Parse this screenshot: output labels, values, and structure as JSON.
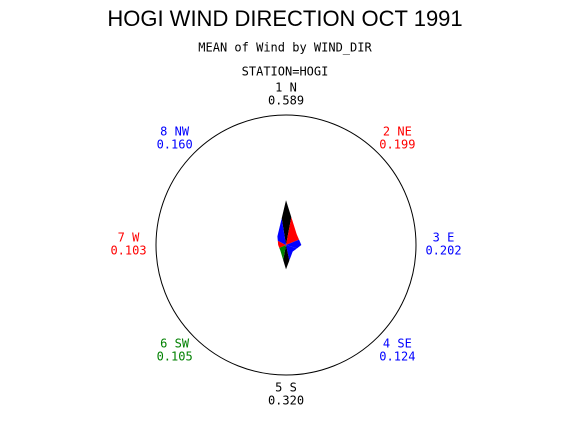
{
  "chart_data": {
    "type": "star",
    "title": "HOGI WIND DIRECTION OCT 1991",
    "subtitle": "MEAN of Wind by WIND_DIR",
    "station": "STATION=HOGI",
    "categories": [
      "1 N",
      "2 NE",
      "3 E",
      "4 SE",
      "5 S",
      "6 SW",
      "7 W",
      "8 NW"
    ],
    "values": [
      0.589,
      0.199,
      0.202,
      0.124,
      0.32,
      0.105,
      0.103,
      0.16
    ],
    "value_labels": [
      "0.589",
      "0.199",
      "0.202",
      "0.124",
      "0.320",
      "0.105",
      "0.103",
      "0.160"
    ],
    "colors": [
      "#000000",
      "#ff0000",
      "#0000ff",
      "#0000ff",
      "#000000",
      "#008000",
      "#ff0000",
      "#0000ff"
    ]
  }
}
